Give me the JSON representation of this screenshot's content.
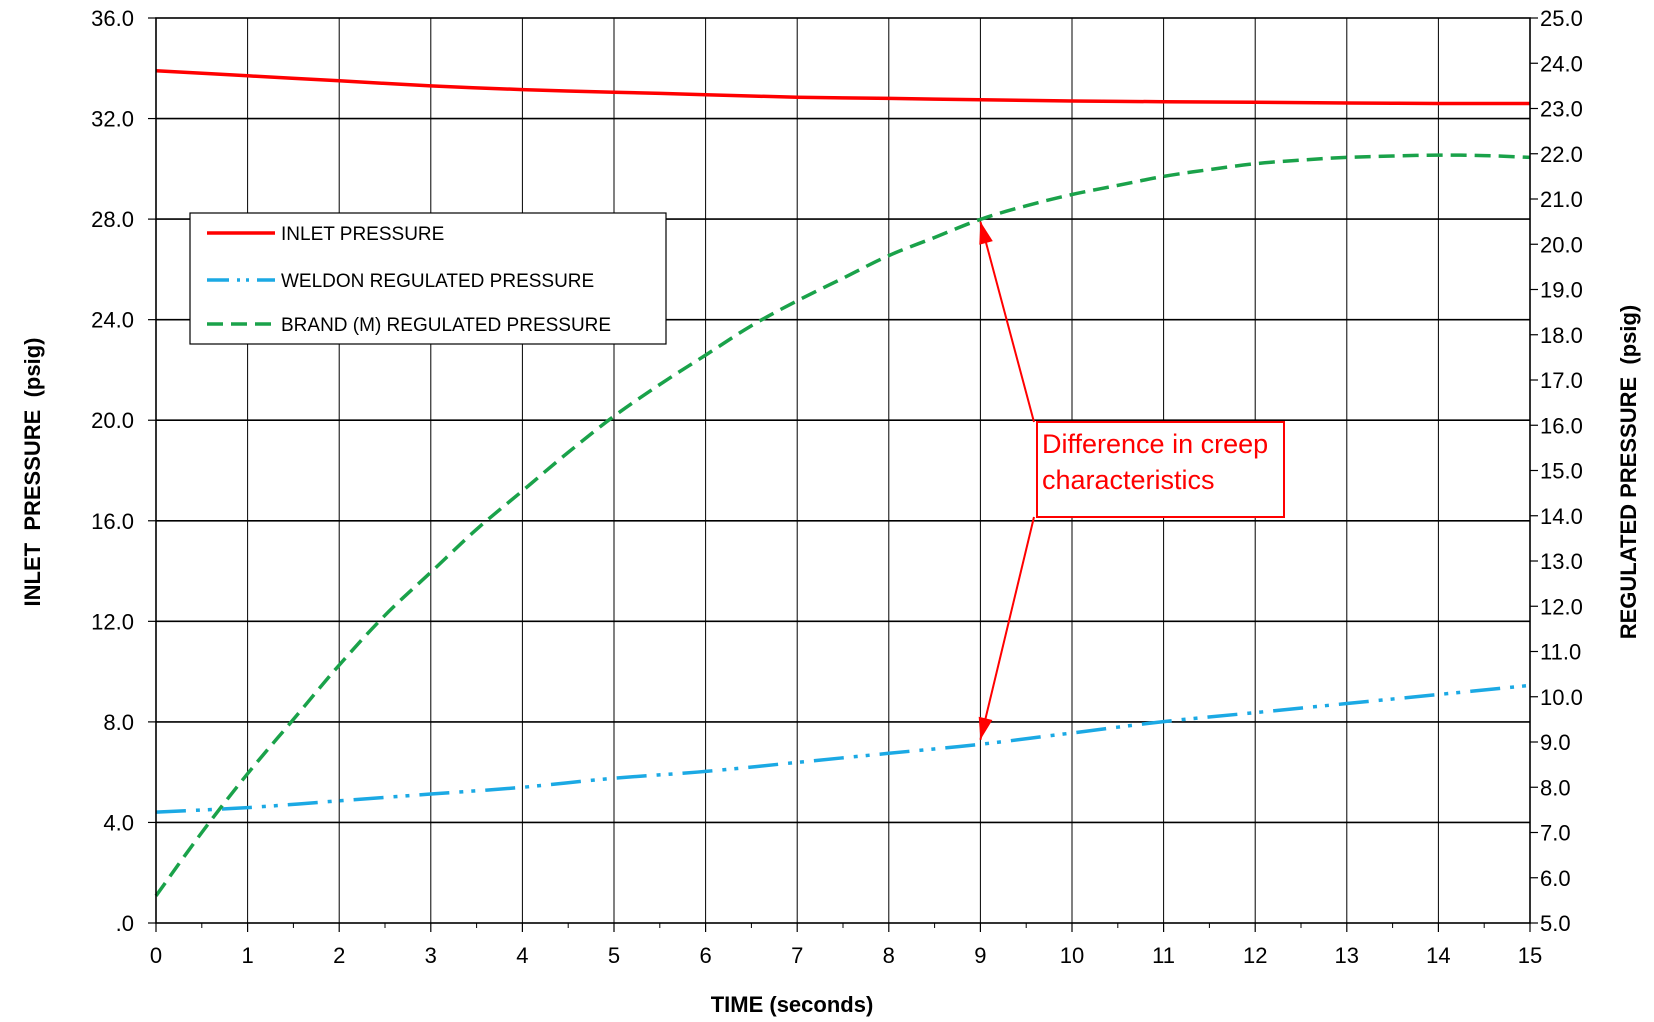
{
  "chart_data": {
    "type": "line",
    "title": "",
    "xlabel": "TIME (seconds)",
    "ylabel_left": "INLET  PRESSURE  (psig)",
    "ylabel_right": "REGULATED PRESSURE  (psig)",
    "xlim": [
      0,
      15
    ],
    "ylim_left": [
      0,
      36
    ],
    "ylim_right": [
      5,
      25
    ],
    "x_ticks": [
      "0",
      "1",
      "2",
      "3",
      "4",
      "5",
      "6",
      "7",
      "8",
      "9",
      "10",
      "11",
      "12",
      "13",
      "14",
      "15"
    ],
    "y_left_ticks": [
      ".0",
      "4.0",
      "8.0",
      "12.0",
      "16.0",
      "20.0",
      "24.0",
      "28.0",
      "32.0",
      "36.0"
    ],
    "y_right_ticks": [
      "5.0",
      "6.0",
      "7.0",
      "8.0",
      "9.0",
      "10.0",
      "11.0",
      "12.0",
      "13.0",
      "14.0",
      "15.0",
      "16.0",
      "17.0",
      "18.0",
      "19.0",
      "20.0",
      "21.0",
      "22.0",
      "23.0",
      "24.0",
      "25.0"
    ],
    "grid": true,
    "legend_position": "upper-left",
    "series": [
      {
        "name": "INLET PRESSURE",
        "axis": "left",
        "color": "#ff0000",
        "style": "solid",
        "x": [
          0,
          1,
          2,
          3,
          4,
          5,
          6,
          7,
          8,
          9,
          10,
          11,
          12,
          13,
          14,
          15
        ],
        "y": [
          33.9,
          33.7,
          33.5,
          33.3,
          33.15,
          33.05,
          32.95,
          32.85,
          32.8,
          32.75,
          32.7,
          32.67,
          32.65,
          32.62,
          32.6,
          32.6
        ]
      },
      {
        "name": "WELDON REGULATED PRESSURE",
        "axis": "right",
        "color": "#1ba9e4",
        "style": "dash-dot-dot",
        "x": [
          0,
          1,
          2,
          3,
          4,
          5,
          6,
          7,
          8,
          9,
          10,
          11,
          12,
          13,
          14,
          15
        ],
        "y": [
          7.45,
          7.55,
          7.7,
          7.85,
          8.0,
          8.2,
          8.35,
          8.55,
          8.75,
          8.95,
          9.2,
          9.45,
          9.65,
          9.85,
          10.05,
          10.25
        ]
      },
      {
        "name": "BRAND (M) REGULATED PRESSURE",
        "axis": "right",
        "color": "#1aa24a",
        "style": "dashed",
        "x": [
          0,
          0.5,
          1,
          1.5,
          2,
          2.5,
          3,
          3.5,
          4,
          4.5,
          5,
          5.5,
          6,
          6.5,
          7,
          7.5,
          8,
          8.5,
          9,
          9.5,
          10,
          10.5,
          11,
          11.5,
          12,
          12.5,
          13,
          13.5,
          14,
          14.5,
          15
        ],
        "y": [
          5.6,
          7.0,
          8.3,
          9.5,
          10.7,
          11.8,
          12.75,
          13.7,
          14.55,
          15.4,
          16.2,
          16.9,
          17.55,
          18.2,
          18.75,
          19.25,
          19.75,
          20.15,
          20.55,
          20.85,
          21.1,
          21.3,
          21.5,
          21.65,
          21.78,
          21.86,
          21.92,
          21.95,
          21.97,
          21.96,
          21.92
        ]
      }
    ],
    "annotation": {
      "text_lines": [
        "Difference in creep",
        "characteristics"
      ],
      "color": "#ff0000",
      "points": [
        {
          "x": 9,
          "y_right": 20.5
        },
        {
          "x": 9,
          "y_right": 9.05
        }
      ]
    }
  }
}
